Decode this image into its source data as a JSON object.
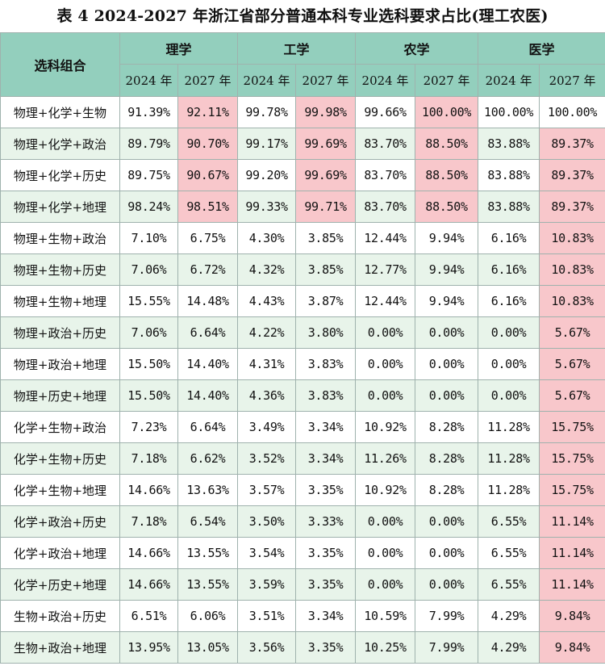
{
  "title": "表 4  2024-2027 年浙江省部分普通本科专业选科要求占比(理工农医)",
  "header": {
    "combo_label": "选科组合",
    "groups": [
      "理学",
      "工学",
      "农学",
      "医学"
    ],
    "years": [
      "2024 年",
      "2027 年",
      "2024 年",
      "2027 年",
      "2024 年",
      "2027 年",
      "2024 年",
      "2027 年"
    ]
  },
  "colors": {
    "header_bg": "#93cfbd",
    "stripe_bg": "#e8f4ea",
    "highlight_bg": "#f8c7cb"
  },
  "rows": [
    {
      "name": "物理+化学+生物",
      "values": [
        "91.39%",
        "92.11%",
        "99.78%",
        "99.98%",
        "99.66%",
        "100.00%",
        "100.00%",
        "100.00%"
      ],
      "highlight": [
        1,
        3,
        5
      ]
    },
    {
      "name": "物理+化学+政治",
      "values": [
        "89.79%",
        "90.70%",
        "99.17%",
        "99.69%",
        "83.70%",
        "88.50%",
        "83.88%",
        "89.37%"
      ],
      "highlight": [
        1,
        3,
        5,
        7
      ]
    },
    {
      "name": "物理+化学+历史",
      "values": [
        "89.75%",
        "90.67%",
        "99.20%",
        "99.69%",
        "83.70%",
        "88.50%",
        "83.88%",
        "89.37%"
      ],
      "highlight": [
        1,
        3,
        5,
        7
      ]
    },
    {
      "name": "物理+化学+地理",
      "values": [
        "98.24%",
        "98.51%",
        "99.33%",
        "99.71%",
        "83.70%",
        "88.50%",
        "83.88%",
        "89.37%"
      ],
      "highlight": [
        1,
        3,
        5,
        7
      ]
    },
    {
      "name": "物理+生物+政治",
      "values": [
        "7.10%",
        "6.75%",
        "4.30%",
        "3.85%",
        "12.44%",
        "9.94%",
        "6.16%",
        "10.83%"
      ],
      "highlight": [
        7
      ]
    },
    {
      "name": "物理+生物+历史",
      "values": [
        "7.06%",
        "6.72%",
        "4.32%",
        "3.85%",
        "12.77%",
        "9.94%",
        "6.16%",
        "10.83%"
      ],
      "highlight": [
        7
      ]
    },
    {
      "name": "物理+生物+地理",
      "values": [
        "15.55%",
        "14.48%",
        "4.43%",
        "3.87%",
        "12.44%",
        "9.94%",
        "6.16%",
        "10.83%"
      ],
      "highlight": [
        7
      ]
    },
    {
      "name": "物理+政治+历史",
      "values": [
        "7.06%",
        "6.64%",
        "4.22%",
        "3.80%",
        "0.00%",
        "0.00%",
        "0.00%",
        "5.67%"
      ],
      "highlight": [
        7
      ]
    },
    {
      "name": "物理+政治+地理",
      "values": [
        "15.50%",
        "14.40%",
        "4.31%",
        "3.83%",
        "0.00%",
        "0.00%",
        "0.00%",
        "5.67%"
      ],
      "highlight": [
        7
      ]
    },
    {
      "name": "物理+历史+地理",
      "values": [
        "15.50%",
        "14.40%",
        "4.36%",
        "3.83%",
        "0.00%",
        "0.00%",
        "0.00%",
        "5.67%"
      ],
      "highlight": [
        7
      ]
    },
    {
      "name": "化学+生物+政治",
      "values": [
        "7.23%",
        "6.64%",
        "3.49%",
        "3.34%",
        "10.92%",
        "8.28%",
        "11.28%",
        "15.75%"
      ],
      "highlight": [
        7
      ]
    },
    {
      "name": "化学+生物+历史",
      "values": [
        "7.18%",
        "6.62%",
        "3.52%",
        "3.34%",
        "11.26%",
        "8.28%",
        "11.28%",
        "15.75%"
      ],
      "highlight": [
        7
      ]
    },
    {
      "name": "化学+生物+地理",
      "values": [
        "14.66%",
        "13.63%",
        "3.57%",
        "3.35%",
        "10.92%",
        "8.28%",
        "11.28%",
        "15.75%"
      ],
      "highlight": [
        7
      ]
    },
    {
      "name": "化学+政治+历史",
      "values": [
        "7.18%",
        "6.54%",
        "3.50%",
        "3.33%",
        "0.00%",
        "0.00%",
        "6.55%",
        "11.14%"
      ],
      "highlight": [
        7
      ]
    },
    {
      "name": "化学+政治+地理",
      "values": [
        "14.66%",
        "13.55%",
        "3.54%",
        "3.35%",
        "0.00%",
        "0.00%",
        "6.55%",
        "11.14%"
      ],
      "highlight": [
        7
      ]
    },
    {
      "name": "化学+历史+地理",
      "values": [
        "14.66%",
        "13.55%",
        "3.59%",
        "3.35%",
        "0.00%",
        "0.00%",
        "6.55%",
        "11.14%"
      ],
      "highlight": [
        7
      ]
    },
    {
      "name": "生物+政治+历史",
      "values": [
        "6.51%",
        "6.06%",
        "3.51%",
        "3.34%",
        "10.59%",
        "7.99%",
        "4.29%",
        "9.84%"
      ],
      "highlight": [
        7
      ]
    },
    {
      "name": "生物+政治+地理",
      "values": [
        "13.95%",
        "13.05%",
        "3.56%",
        "3.35%",
        "10.25%",
        "7.99%",
        "4.29%",
        "9.84%"
      ],
      "highlight": [
        7
      ]
    }
  ]
}
